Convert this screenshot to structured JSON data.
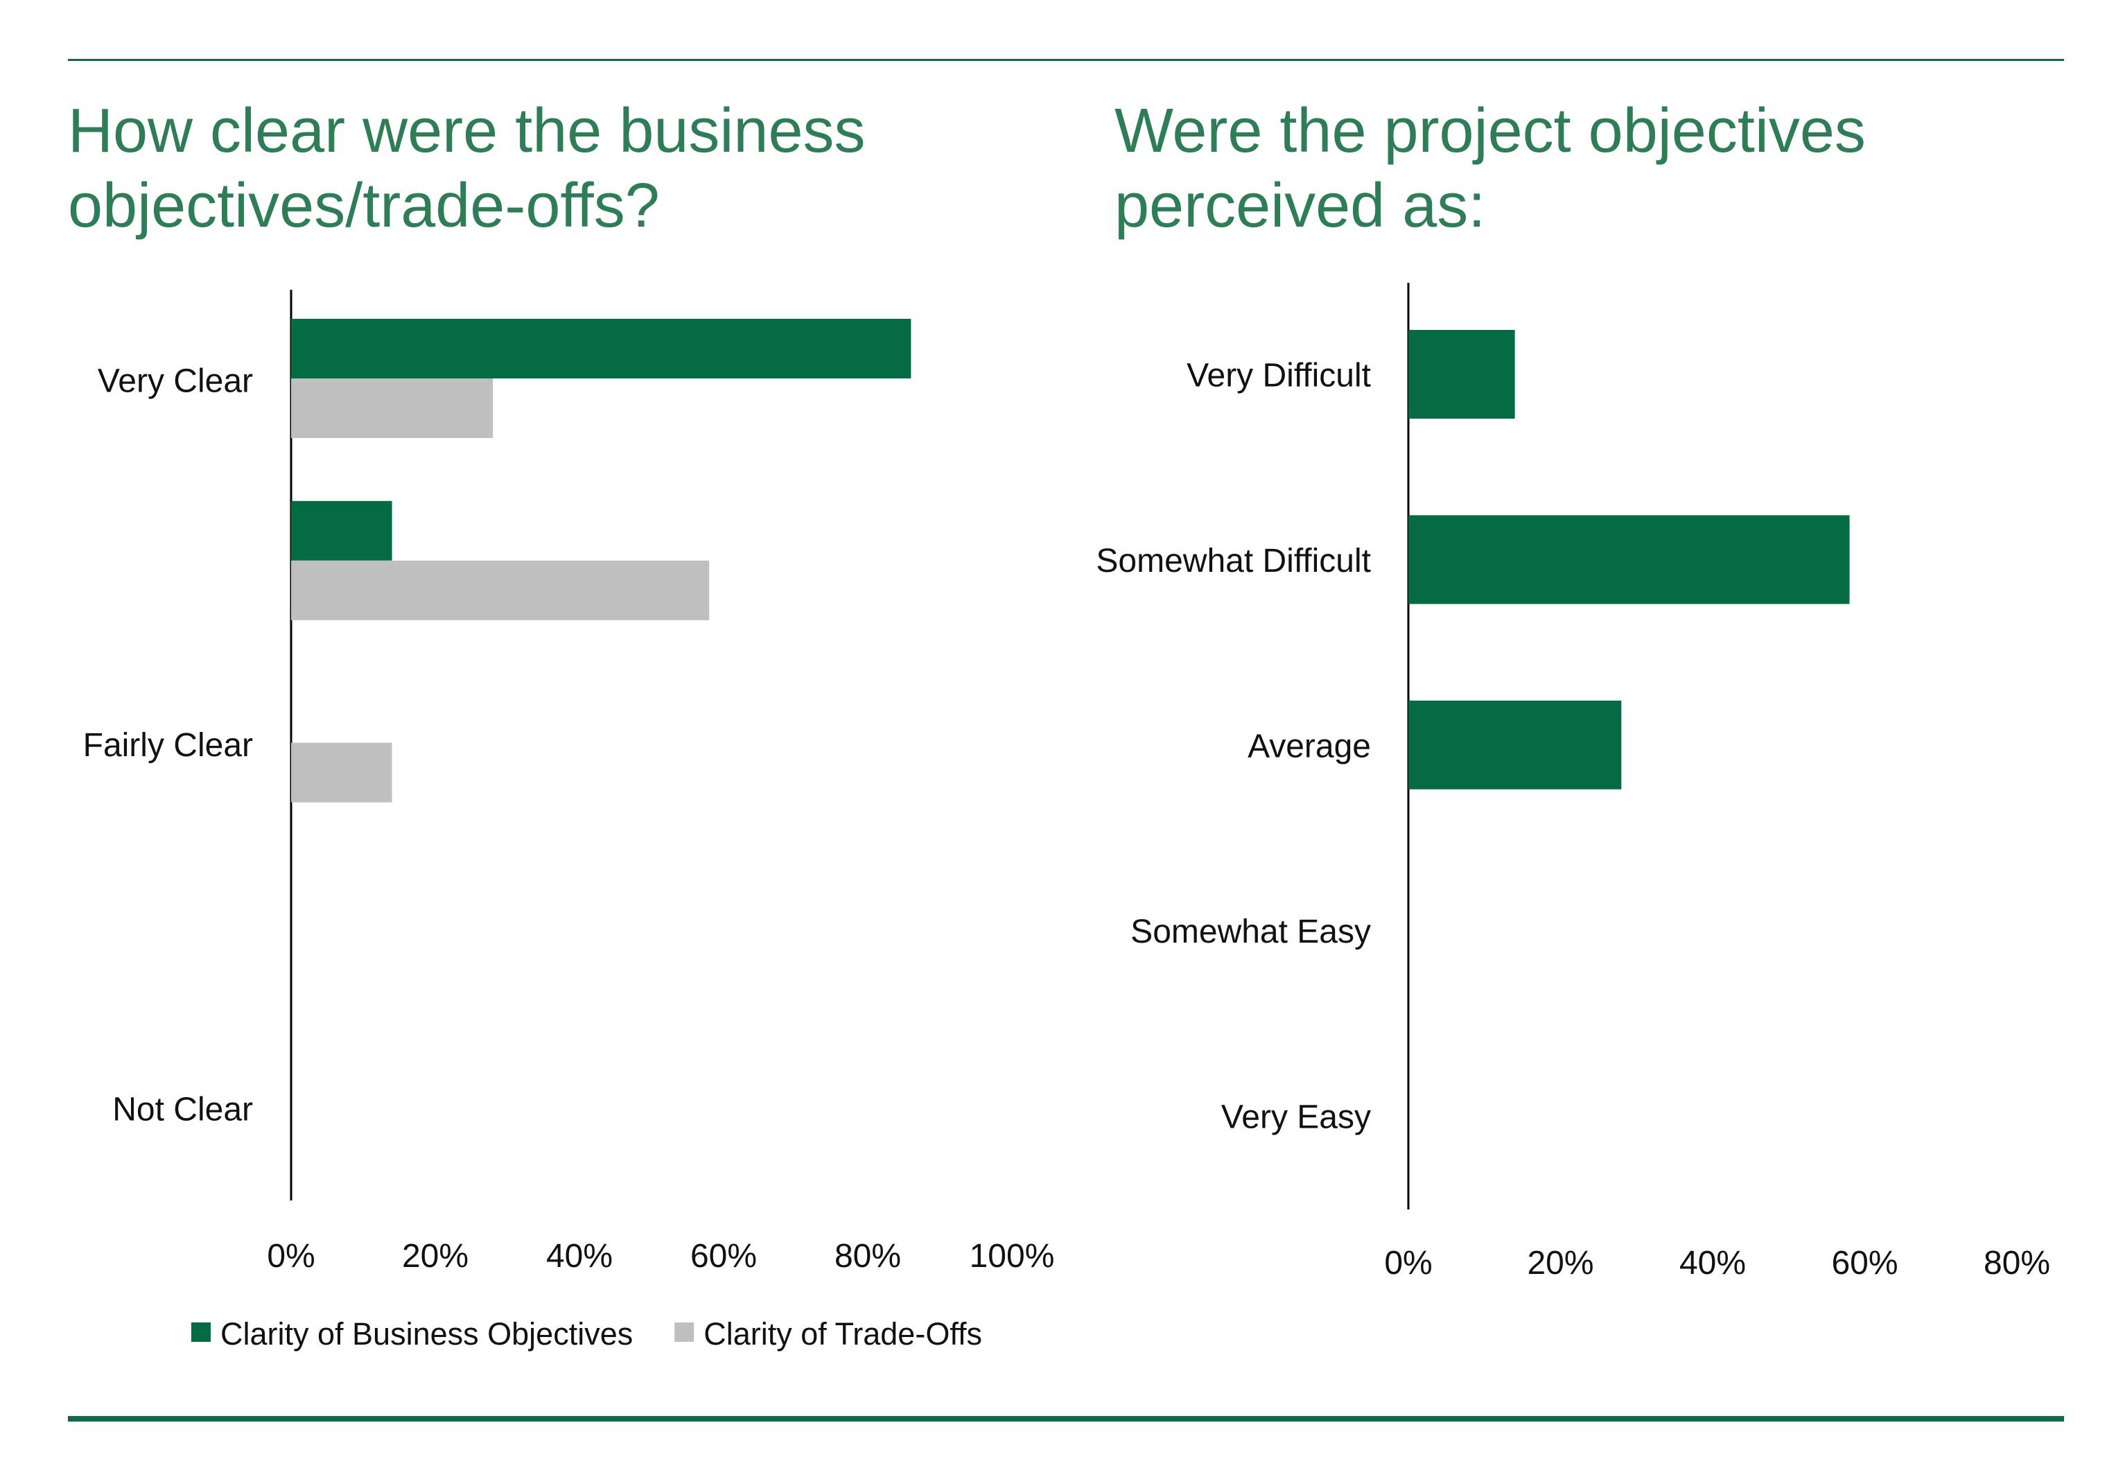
{
  "colors": {
    "accent": "#046b42",
    "secondary": "#bfbfbf",
    "title": "#2e7d57",
    "rule": "#0f6b45"
  },
  "chart_data": [
    {
      "type": "bar",
      "orientation": "horizontal",
      "title": "How clear were the business objectives/trade-offs?",
      "categories": [
        "Very Clear",
        "",
        "Fairly Clear",
        "",
        "Not Clear"
      ],
      "series": [
        {
          "name": "Clarity of Business Objectives",
          "color": "#046b42",
          "values": [
            0.86,
            0.14,
            0,
            0,
            0
          ]
        },
        {
          "name": "Clarity of Trade-Offs",
          "color": "#bfbfbf",
          "values": [
            0.28,
            0.58,
            0.14,
            0,
            0
          ]
        }
      ],
      "xlim": [
        0,
        1
      ],
      "xticks": [
        "0%",
        "20%",
        "40%",
        "60%",
        "80%",
        "100%"
      ],
      "legend": "bottom",
      "grid": false
    },
    {
      "type": "bar",
      "orientation": "horizontal",
      "title": "Were the project objectives perceived as:",
      "categories": [
        "Very Difficult",
        "Somewhat Difficult",
        "Average",
        "Somewhat Easy",
        "Very Easy"
      ],
      "series": [
        {
          "color": "#046b42",
          "values": [
            0.14,
            0.58,
            0.28,
            0,
            0
          ]
        }
      ],
      "xlim": [
        0,
        0.8
      ],
      "xticks": [
        "0%",
        "20%",
        "40%",
        "60%",
        "80%"
      ],
      "legend": "none",
      "grid": false
    }
  ]
}
